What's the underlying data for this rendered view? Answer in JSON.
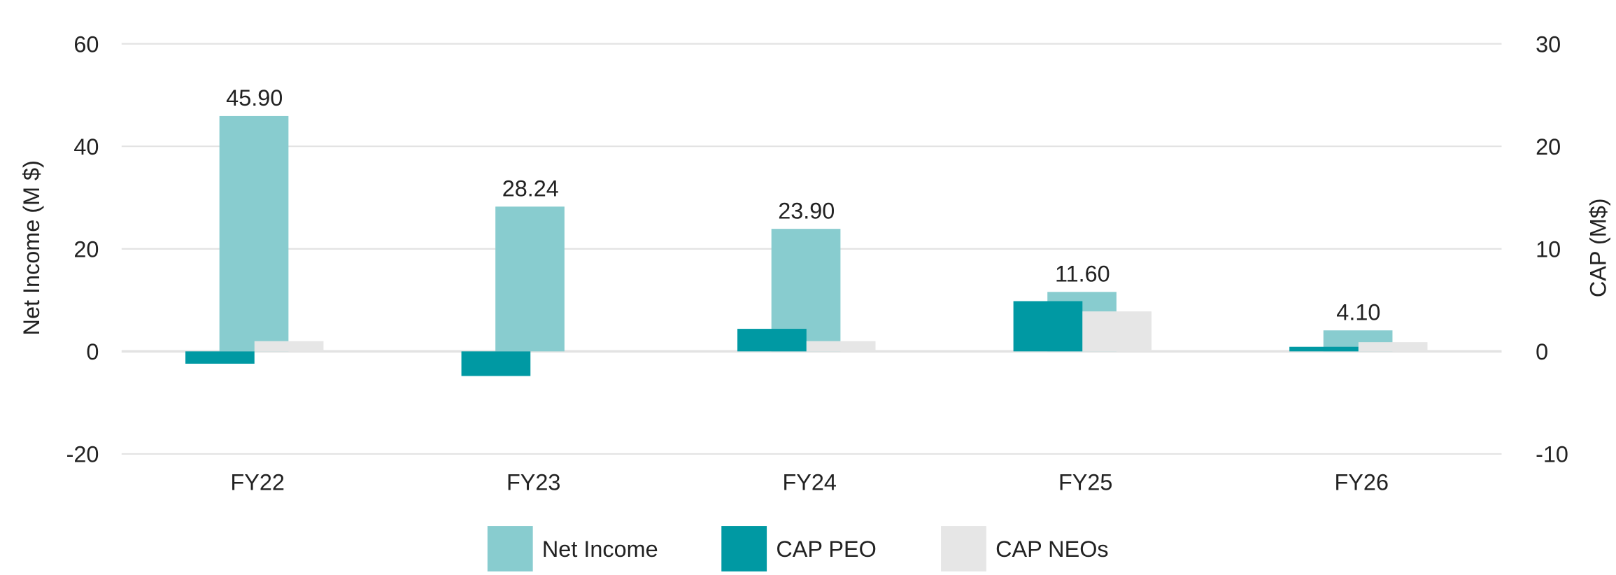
{
  "chart_data": {
    "type": "bar",
    "title": "",
    "categories": [
      "FY22",
      "FY23",
      "FY24",
      "FY25",
      "FY26"
    ],
    "ylabel_left": "Net Income (M $)",
    "ylabel_right": "CAP (M$)",
    "ylim_left": [
      -20,
      60
    ],
    "ylim_right": [
      -10,
      30
    ],
    "yticks_left": [
      "60",
      "40",
      "20",
      "0",
      "-20"
    ],
    "yticks_right": [
      "30",
      "20",
      "10",
      "0",
      "-10"
    ],
    "grid": true,
    "legend_position": "bottom",
    "series": [
      {
        "name": "Net Income",
        "axis": "left",
        "color": "#88cccf",
        "values": [
          45.9,
          28.24,
          23.9,
          11.6,
          4.1
        ],
        "labels": [
          "45.90",
          "28.24",
          "23.90",
          "11.60",
          "4.10"
        ]
      },
      {
        "name": "CAP PEO",
        "axis": "right",
        "color": "#0099a3",
        "values": [
          -1.2,
          -2.4,
          2.2,
          4.9,
          0.45
        ]
      },
      {
        "name": "CAP NEOs",
        "axis": "right",
        "color": "#e6e6e6",
        "values": [
          1.0,
          0,
          1.0,
          3.9,
          0.9
        ]
      }
    ]
  }
}
